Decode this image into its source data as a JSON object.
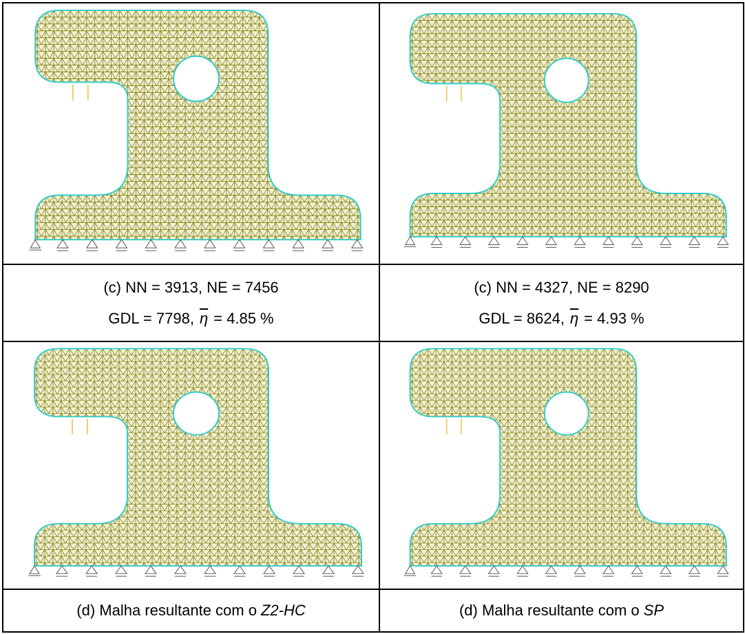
{
  "panels": [
    {
      "caption": {
        "line1": "(c) NN = 3913, NE = 7456",
        "line2_prefix": "GDL = 7798,",
        "symbol": "η",
        "line2_suffix": "= 4.85 %"
      }
    },
    {
      "caption": {
        "line1": "(c) NN = 4327, NE = 8290",
        "line2_prefix": "GDL = 8624,",
        "symbol": "η",
        "line2_suffix": "= 4.93 %"
      }
    },
    {
      "caption": {
        "text": "(d) Malha resultante com o",
        "emphasis": "Z2-HC"
      }
    },
    {
      "caption": {
        "text": "(d) Malha resultante com o",
        "emphasis": "SP"
      }
    }
  ]
}
